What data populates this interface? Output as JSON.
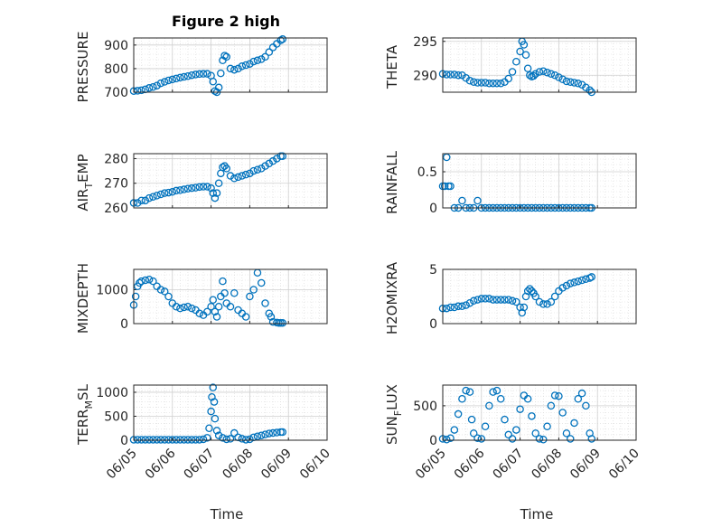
{
  "figure_title": "Figure 2 high",
  "colors": {
    "marker": "#0072BD",
    "axis": "#262626",
    "grid": "#d9d9d9"
  },
  "chart_data": [
    {
      "type": "scatter",
      "ylabel": "PRESSURE",
      "title": "Figure 2 high",
      "ylim": [
        700,
        930
      ],
      "yticks": [
        "700",
        "800",
        "900"
      ],
      "grid": true,
      "x": [
        0,
        0.1,
        0.2,
        0.3,
        0.4,
        0.5,
        0.6,
        0.7,
        0.8,
        0.9,
        1,
        1.1,
        1.2,
        1.3,
        1.4,
        1.5,
        1.6,
        1.7,
        1.8,
        1.9,
        2,
        2.05,
        2.1,
        2.15,
        2.2,
        2.25,
        2.3,
        2.35,
        2.4,
        2.5,
        2.6,
        2.7,
        2.8,
        2.9,
        3,
        3.1,
        3.2,
        3.3,
        3.4,
        3.5,
        3.6,
        3.7,
        3.8,
        3.85
      ],
      "y": [
        705,
        706,
        708,
        712,
        718,
        722,
        728,
        738,
        744,
        750,
        754,
        758,
        762,
        765,
        768,
        772,
        775,
        777,
        778,
        778,
        770,
        745,
        705,
        700,
        720,
        780,
        835,
        855,
        850,
        800,
        795,
        800,
        810,
        815,
        820,
        830,
        835,
        840,
        850,
        870,
        890,
        905,
        920,
        925
      ]
    },
    {
      "type": "scatter",
      "ylabel": "THETA",
      "ylim": [
        287.5,
        295.5
      ],
      "yticks": [
        "290",
        "295"
      ],
      "grid": true,
      "x": [
        0,
        0.1,
        0.2,
        0.3,
        0.4,
        0.5,
        0.6,
        0.7,
        0.8,
        0.9,
        1,
        1.1,
        1.2,
        1.3,
        1.4,
        1.5,
        1.6,
        1.7,
        1.8,
        1.9,
        2,
        2.05,
        2.1,
        2.15,
        2.2,
        2.25,
        2.3,
        2.35,
        2.4,
        2.5,
        2.6,
        2.7,
        2.8,
        2.9,
        3,
        3.1,
        3.2,
        3.3,
        3.4,
        3.5,
        3.6,
        3.7,
        3.8,
        3.85
      ],
      "y": [
        290.2,
        290.1,
        290.1,
        290.1,
        290.0,
        290.0,
        289.6,
        289.2,
        289.0,
        288.9,
        288.9,
        288.9,
        288.8,
        288.8,
        288.8,
        288.8,
        289.0,
        289.5,
        290.5,
        292.0,
        293.5,
        295.0,
        294.5,
        293.0,
        291.0,
        290.0,
        289.8,
        289.9,
        290.2,
        290.5,
        290.6,
        290.4,
        290.2,
        290.0,
        289.7,
        289.4,
        289.1,
        289.0,
        288.9,
        288.8,
        288.6,
        288.2,
        287.8,
        287.5
      ]
    },
    {
      "type": "scatter",
      "ylabel": "AIR_TEMP",
      "ylim": [
        260,
        282
      ],
      "yticks": [
        "260",
        "270",
        "280"
      ],
      "grid": true,
      "x": [
        0,
        0.1,
        0.2,
        0.3,
        0.4,
        0.5,
        0.6,
        0.7,
        0.8,
        0.9,
        1,
        1.1,
        1.2,
        1.3,
        1.4,
        1.5,
        1.6,
        1.7,
        1.8,
        1.9,
        2,
        2.05,
        2.1,
        2.15,
        2.2,
        2.25,
        2.3,
        2.35,
        2.4,
        2.5,
        2.6,
        2.7,
        2.8,
        2.9,
        3,
        3.1,
        3.2,
        3.3,
        3.4,
        3.5,
        3.6,
        3.7,
        3.8,
        3.85
      ],
      "y": [
        262,
        262,
        263,
        263,
        264,
        264.5,
        265,
        265.5,
        266,
        266.2,
        266.5,
        267,
        267.2,
        267.5,
        267.8,
        268,
        268.2,
        268.5,
        268.6,
        268.6,
        268.0,
        266,
        264,
        266,
        270,
        274,
        276.5,
        277,
        276,
        273,
        272,
        272.5,
        273,
        273.5,
        274,
        275,
        275.5,
        276,
        277,
        278,
        279,
        280,
        281,
        281
      ]
    },
    {
      "type": "scatter",
      "ylabel": "RAINFALL",
      "ylim": [
        0,
        0.75
      ],
      "yticks": [
        "0",
        "0.5"
      ],
      "grid": true,
      "x": [
        0,
        0.05,
        0.1,
        0.15,
        0.2,
        0.3,
        0.4,
        0.5,
        0.6,
        0.7,
        0.8,
        0.9,
        1,
        1.1,
        1.2,
        1.3,
        1.4,
        1.5,
        1.6,
        1.7,
        1.8,
        1.9,
        2,
        2.1,
        2.2,
        2.3,
        2.4,
        2.5,
        2.6,
        2.7,
        2.8,
        2.9,
        3,
        3.1,
        3.2,
        3.3,
        3.4,
        3.5,
        3.6,
        3.7,
        3.8,
        3.85
      ],
      "y": [
        0.3,
        0.3,
        0.7,
        0.3,
        0.3,
        0,
        0,
        0.1,
        0,
        0,
        0,
        0.1,
        0,
        0,
        0,
        0,
        0,
        0,
        0,
        0,
        0,
        0,
        0,
        0,
        0,
        0,
        0,
        0,
        0,
        0,
        0,
        0,
        0,
        0,
        0,
        0,
        0,
        0,
        0,
        0,
        0,
        0
      ]
    },
    {
      "type": "scatter",
      "ylabel": "MIXDEPTH",
      "ylim": [
        0,
        1600
      ],
      "yticks": [
        "0",
        "1000"
      ],
      "grid": true,
      "x": [
        0,
        0.05,
        0.1,
        0.15,
        0.2,
        0.3,
        0.4,
        0.5,
        0.6,
        0.7,
        0.8,
        0.9,
        1,
        1.1,
        1.2,
        1.3,
        1.4,
        1.5,
        1.6,
        1.7,
        1.8,
        1.9,
        2,
        2.05,
        2.1,
        2.15,
        2.2,
        2.25,
        2.3,
        2.35,
        2.4,
        2.5,
        2.6,
        2.7,
        2.8,
        2.9,
        3,
        3.1,
        3.2,
        3.3,
        3.4,
        3.5,
        3.55,
        3.6,
        3.7,
        3.75,
        3.8,
        3.85
      ],
      "y": [
        550,
        800,
        1100,
        1200,
        1250,
        1280,
        1300,
        1250,
        1100,
        1000,
        950,
        800,
        600,
        500,
        450,
        480,
        500,
        450,
        400,
        300,
        250,
        350,
        500,
        700,
        350,
        200,
        500,
        800,
        1250,
        900,
        600,
        500,
        900,
        400,
        300,
        200,
        800,
        1000,
        1500,
        1200,
        600,
        300,
        200,
        50,
        30,
        20,
        20,
        20
      ]
    },
    {
      "type": "scatter",
      "ylabel": "H2OMIXRA",
      "ylim": [
        0,
        5
      ],
      "yticks": [
        "0",
        "5"
      ],
      "grid": true,
      "x": [
        0,
        0.1,
        0.2,
        0.3,
        0.4,
        0.5,
        0.6,
        0.7,
        0.8,
        0.9,
        1,
        1.1,
        1.2,
        1.3,
        1.4,
        1.5,
        1.6,
        1.7,
        1.8,
        1.9,
        2,
        2.05,
        2.1,
        2.15,
        2.2,
        2.25,
        2.3,
        2.35,
        2.4,
        2.5,
        2.6,
        2.7,
        2.8,
        2.9,
        3,
        3.1,
        3.2,
        3.3,
        3.4,
        3.5,
        3.6,
        3.7,
        3.8,
        3.85
      ],
      "y": [
        1.4,
        1.4,
        1.5,
        1.5,
        1.6,
        1.6,
        1.7,
        1.9,
        2.1,
        2.2,
        2.3,
        2.3,
        2.3,
        2.2,
        2.2,
        2.2,
        2.2,
        2.2,
        2.1,
        2.0,
        1.5,
        1.0,
        1.5,
        2.5,
        3.0,
        3.2,
        3.0,
        2.8,
        2.5,
        2.0,
        1.8,
        1.8,
        2.0,
        2.5,
        3.0,
        3.3,
        3.5,
        3.7,
        3.8,
        3.9,
        4.0,
        4.1,
        4.2,
        4.3
      ]
    },
    {
      "type": "scatter",
      "ylabel": "TERR_MSL",
      "ylim": [
        0,
        1150
      ],
      "yticks": [
        "0",
        "500",
        "1000"
      ],
      "grid": true,
      "x": [
        0,
        0.1,
        0.2,
        0.3,
        0.4,
        0.5,
        0.6,
        0.7,
        0.8,
        0.9,
        1,
        1.1,
        1.2,
        1.3,
        1.4,
        1.5,
        1.6,
        1.7,
        1.8,
        1.9,
        1.95,
        2,
        2.02,
        2.05,
        2.08,
        2.1,
        2.15,
        2.2,
        2.3,
        2.4,
        2.5,
        2.6,
        2.7,
        2.8,
        2.9,
        3,
        3.1,
        3.2,
        3.3,
        3.4,
        3.5,
        3.6,
        3.7,
        3.8,
        3.85
      ],
      "y": [
        10,
        10,
        10,
        10,
        10,
        10,
        10,
        10,
        10,
        10,
        10,
        10,
        10,
        10,
        10,
        10,
        10,
        10,
        20,
        50,
        250,
        600,
        900,
        1100,
        800,
        450,
        200,
        100,
        50,
        20,
        30,
        150,
        60,
        30,
        10,
        20,
        60,
        80,
        100,
        120,
        140,
        150,
        160,
        170,
        170
      ]
    },
    {
      "type": "scatter",
      "ylabel": "SUN_FLUX",
      "ylim": [
        0,
        800
      ],
      "yticks": [
        "0",
        "500"
      ],
      "grid": true,
      "x": [
        0,
        0.1,
        0.2,
        0.3,
        0.4,
        0.5,
        0.6,
        0.7,
        0.75,
        0.8,
        0.9,
        1,
        1.1,
        1.2,
        1.3,
        1.4,
        1.5,
        1.6,
        1.7,
        1.8,
        1.9,
        2,
        2.1,
        2.2,
        2.3,
        2.4,
        2.5,
        2.6,
        2.7,
        2.8,
        2.9,
        3,
        3.1,
        3.2,
        3.3,
        3.4,
        3.5,
        3.6,
        3.7,
        3.8,
        3.85
      ],
      "y": [
        20,
        10,
        30,
        150,
        380,
        600,
        720,
        700,
        300,
        100,
        30,
        20,
        200,
        500,
        700,
        720,
        600,
        300,
        80,
        20,
        150,
        450,
        650,
        600,
        350,
        100,
        20,
        10,
        200,
        500,
        650,
        640,
        400,
        100,
        20,
        250,
        600,
        680,
        500,
        100,
        20
      ]
    }
  ],
  "x_axis": {
    "label": "Time",
    "ticks": [
      "06/05",
      "06/06",
      "06/07",
      "06/08",
      "06/09",
      "06/10"
    ]
  }
}
